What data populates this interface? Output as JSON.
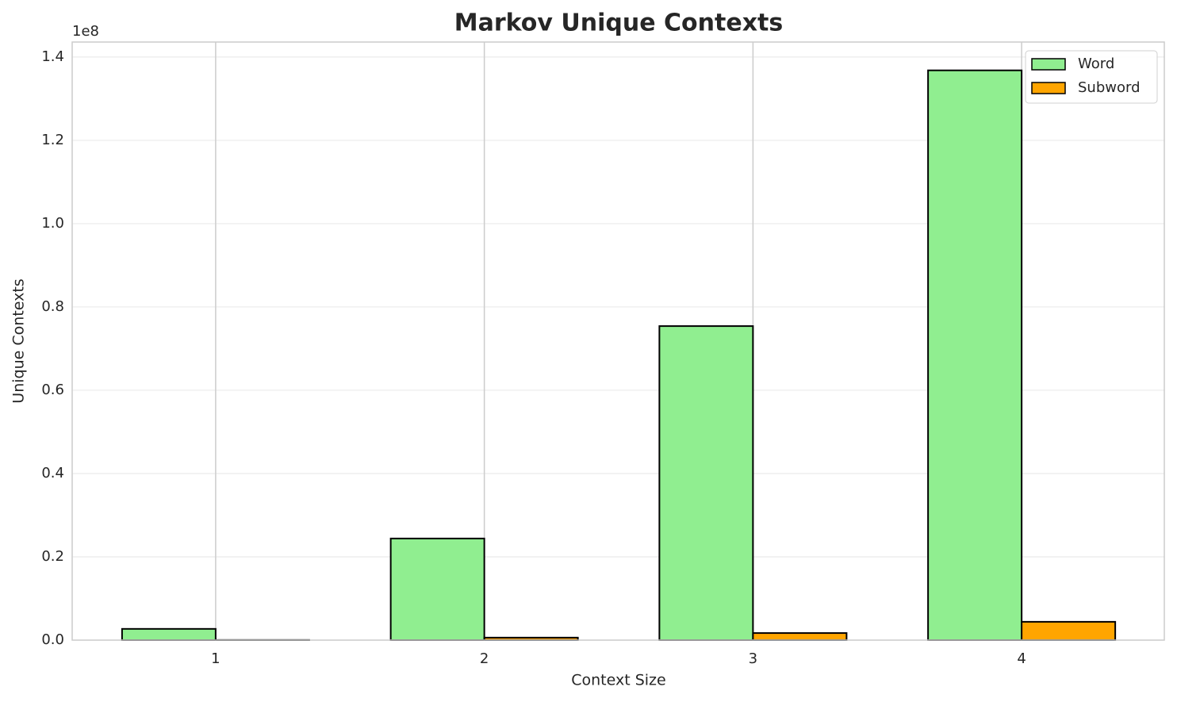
{
  "chart_data": {
    "type": "bar",
    "title": "Markov Unique Contexts",
    "x_label": "Context Size",
    "y_label": "Unique Contexts",
    "y_offset_label": "1e8",
    "categories": [
      "1",
      "2",
      "3",
      "4"
    ],
    "series": [
      {
        "name": "Word",
        "color": "#90ee90",
        "values": [
          0.027,
          0.244,
          0.754,
          1.368
        ]
      },
      {
        "name": "Subword",
        "color": "#ffa500",
        "values": [
          0.0003,
          0.006,
          0.017,
          0.044
        ]
      }
    ],
    "ylim": [
      0,
      1.436
    ],
    "yticks": [
      {
        "value": 0,
        "label": "0.0"
      },
      0.2,
      0.4,
      0.6,
      0.8,
      {
        "value": 1,
        "label": "1.0"
      },
      1.2,
      1.4
    ],
    "grid": true,
    "legend": "upper right"
  }
}
